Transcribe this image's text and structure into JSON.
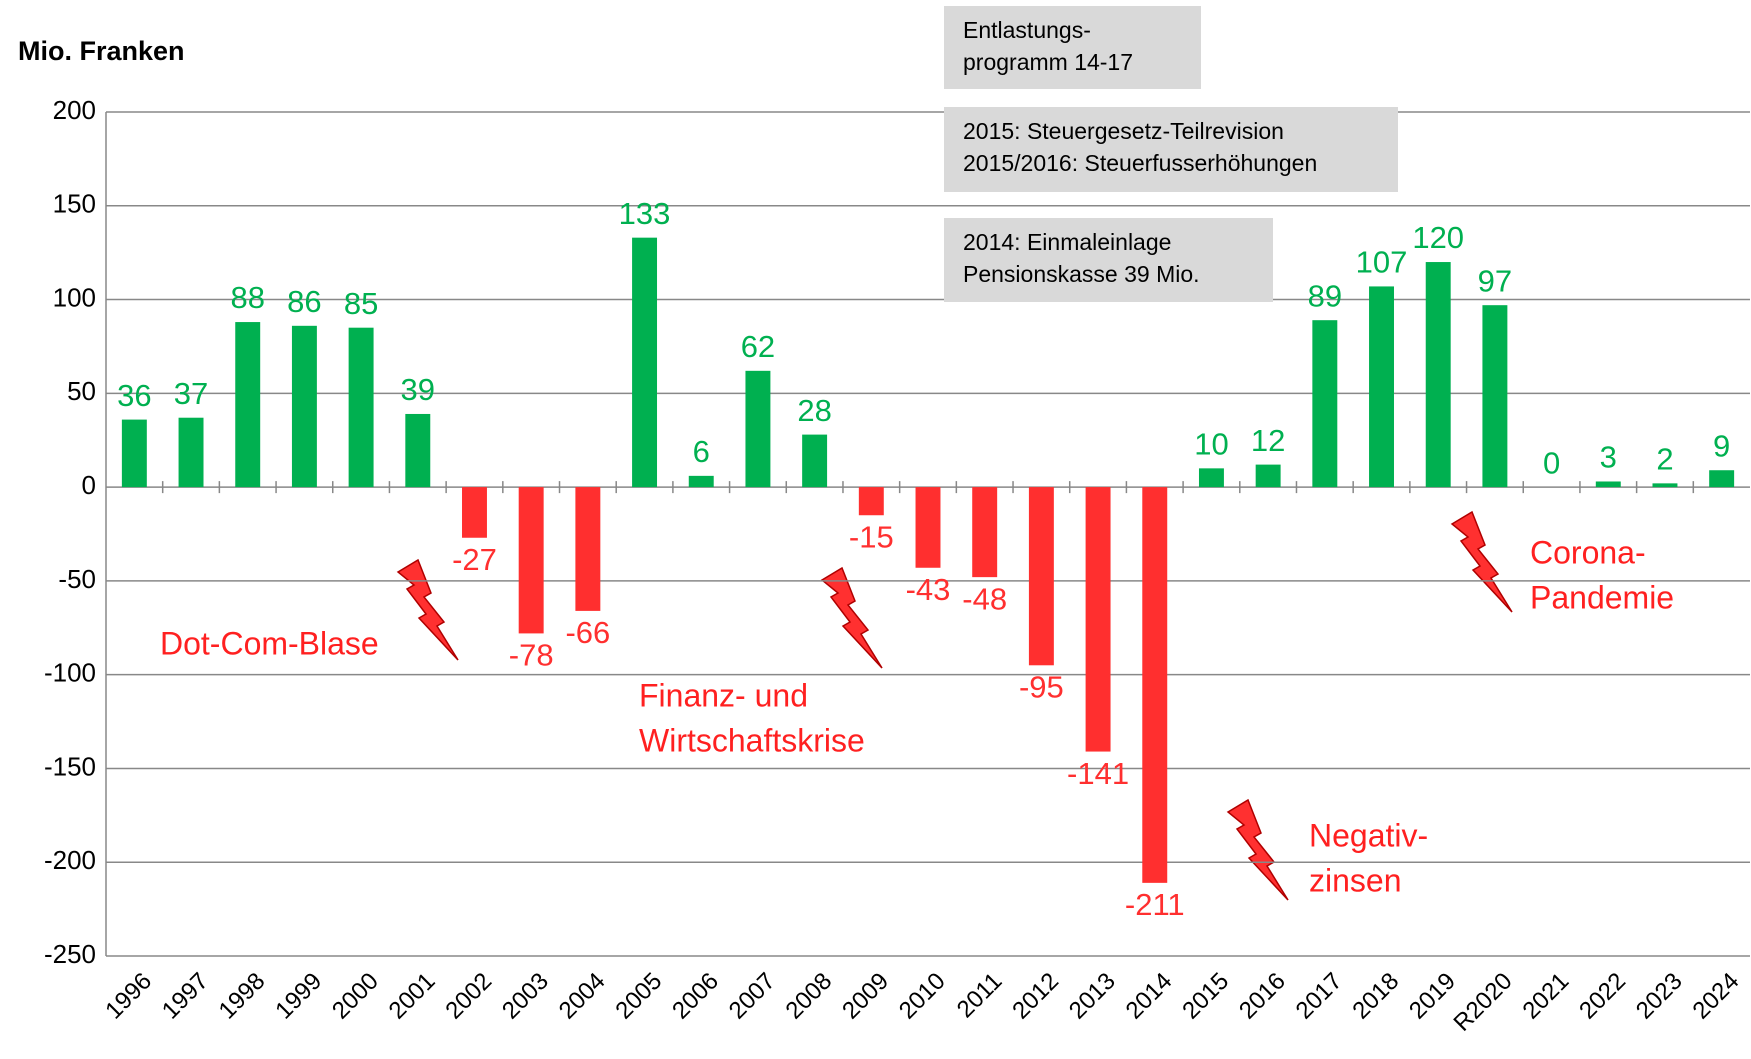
{
  "chart_data": {
    "type": "bar",
    "title": "Mio. Franken",
    "categories": [
      "1996",
      "1997",
      "1998",
      "1999",
      "2000",
      "2001",
      "2002",
      "2003",
      "2004",
      "2005",
      "2006",
      "2007",
      "2008",
      "2009",
      "2010",
      "2011",
      "2012",
      "2013",
      "2014",
      "2015",
      "2016",
      "2017",
      "2018",
      "2019",
      "R2020",
      "2021",
      "2022",
      "2023",
      "2024"
    ],
    "values": [
      36,
      37,
      88,
      86,
      85,
      39,
      -27,
      -78,
      -66,
      133,
      6,
      62,
      28,
      -15,
      -43,
      -48,
      -95,
      -141,
      -211,
      10,
      12,
      89,
      107,
      120,
      97,
      0,
      3,
      2,
      9
    ],
    "positive_color": "#00b050",
    "negative_color": "#ff2f2f",
    "ylim": [
      -250,
      200
    ],
    "yticks": [
      -250,
      -200,
      -150,
      -100,
      -50,
      0,
      50,
      100,
      150,
      200
    ],
    "grid": true,
    "boxes": [
      {
        "lines": [
          "Entlastungs-",
          "programm 14-17"
        ]
      },
      {
        "lines": [
          "2015: Steuergesetz-Teilrevision",
          "2015/2016: Steuerfusserhöhungen"
        ]
      },
      {
        "lines": [
          "2014: Einmaleinlage",
          "Pensionskasse 39 Mio."
        ]
      }
    ],
    "notes": [
      {
        "lines": [
          "Dot-Com-Blase"
        ]
      },
      {
        "lines": [
          "Finanz- und",
          "Wirtschaftskrise"
        ]
      },
      {
        "lines": [
          "Negativ-",
          "zinsen"
        ]
      },
      {
        "lines": [
          "Corona-",
          "Pandemie"
        ]
      }
    ]
  }
}
